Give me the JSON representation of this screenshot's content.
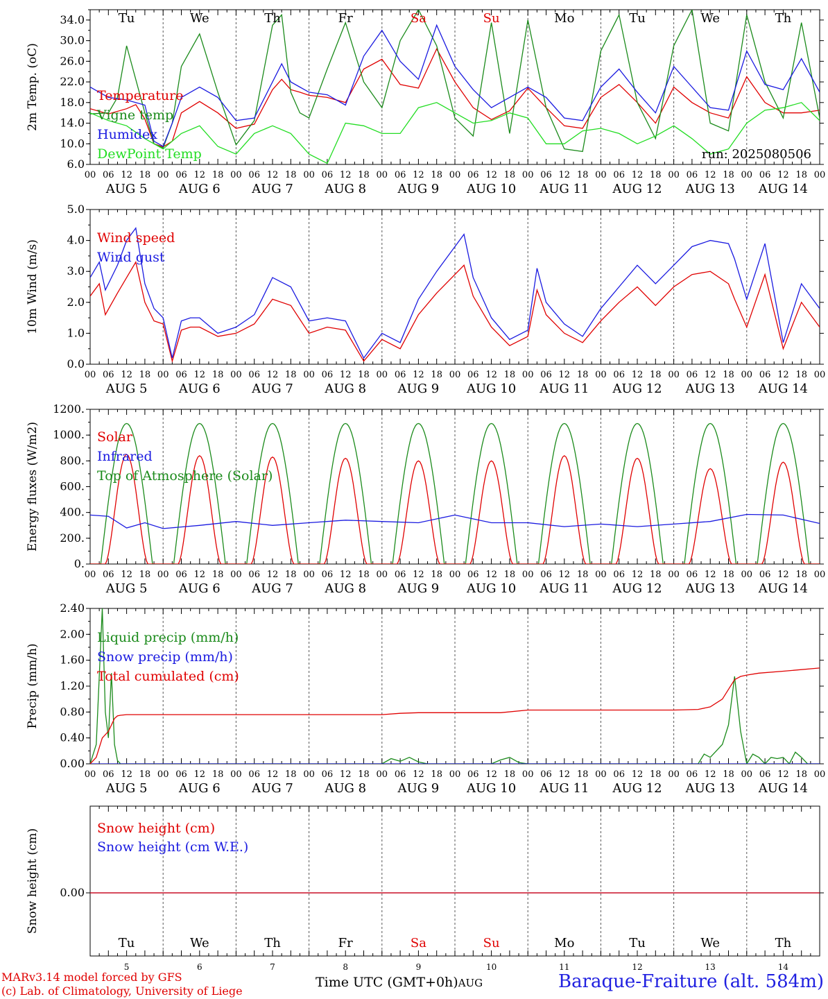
{
  "colors": {
    "red": "#e00000",
    "green": "#1a8a1a",
    "blue": "#1a1ae0",
    "lightgreen": "#22dd22",
    "axis": "#000000",
    "grid": "#555555"
  },
  "footer": {
    "credit_line1": "MARv3.14 model forced by GFS",
    "credit_line2": "(c) Lab. of Climatology, University of Liege",
    "time_label": "Time UTC (GMT+0h)",
    "aug_label": "AUG",
    "station": "Baraque-Fraiture (alt. 584m)"
  },
  "chart_data": [
    {
      "id": "temp",
      "type": "line",
      "ylabel": "2m Temp. (oC)",
      "ylim": [
        6,
        36
      ],
      "yticks": [
        "6.0",
        "10.0",
        "14.0",
        "18.0",
        "22.0",
        "26.0",
        "30.0",
        "34.0"
      ],
      "ytick_values": [
        6,
        10,
        14,
        18,
        22,
        26,
        30,
        34
      ],
      "days_top": [
        "Tu",
        "We",
        "Th",
        "Fr",
        "Sa",
        "Su",
        "Mo",
        "Tu",
        "We",
        "Th"
      ],
      "weekend_days": [
        4,
        5
      ],
      "run_label": "run: 2025080506",
      "date_labels": [
        "AUG 5",
        "AUG 6",
        "AUG 7",
        "AUG 8",
        "AUG 9",
        "AUG 10",
        "AUG 11",
        "AUG 12",
        "AUG 13",
        "AUG 14"
      ],
      "hour_labels": [
        "00",
        "06",
        "12",
        "18"
      ],
      "x_unit": "hours since AUG 5 00 UTC",
      "xlim": [
        0,
        240
      ],
      "series": [
        {
          "name": "Temperature",
          "color": "red",
          "x": [
            0,
            6,
            12,
            15,
            18,
            21,
            24,
            27,
            30,
            36,
            42,
            48,
            54,
            60,
            63,
            66,
            69,
            72,
            78,
            84,
            90,
            96,
            102,
            108,
            114,
            120,
            126,
            132,
            138,
            144,
            150,
            156,
            162,
            168,
            174,
            180,
            186,
            192,
            198,
            204,
            210,
            216,
            222,
            228,
            234,
            240
          ],
          "y": [
            16.8,
            15.8,
            16.8,
            17.6,
            14.8,
            10.0,
            9.4,
            10.5,
            16.0,
            18.2,
            16.0,
            13.0,
            13.8,
            20.5,
            22.5,
            20.5,
            20.0,
            19.4,
            19.0,
            18.0,
            24.5,
            26.4,
            21.5,
            20.8,
            28.4,
            22.0,
            17.0,
            14.7,
            16.4,
            20.8,
            17.0,
            13.5,
            13.0,
            19.0,
            21.5,
            18.0,
            14.0,
            21.0,
            18.0,
            16.0,
            15.0,
            23.0,
            18.0,
            16.0,
            16.0,
            16.5
          ]
        },
        {
          "name": "Vigne temp",
          "color": "green",
          "x": [
            0,
            6,
            9,
            12,
            18,
            21,
            24,
            27,
            30,
            36,
            42,
            48,
            54,
            60,
            63,
            66,
            69,
            72,
            78,
            84,
            90,
            96,
            102,
            108,
            114,
            120,
            126,
            132,
            138,
            144,
            150,
            156,
            162,
            168,
            174,
            180,
            186,
            192,
            198,
            204,
            210,
            216,
            222,
            228,
            234,
            240
          ],
          "y": [
            15.8,
            16.0,
            19.0,
            29.0,
            16.0,
            10.0,
            9.2,
            14.0,
            25.0,
            31.3,
            20.0,
            9.8,
            14.5,
            33.0,
            35.0,
            20.0,
            16.0,
            15.0,
            24.5,
            33.5,
            22.0,
            17.0,
            30.0,
            36.0,
            29.0,
            15.0,
            11.5,
            33.5,
            12.0,
            34.0,
            17.0,
            9.0,
            8.5,
            28.0,
            35.0,
            18.0,
            11.0,
            29.0,
            36.0,
            14.0,
            12.5,
            35.0,
            22.0,
            15.0,
            33.5,
            15.0
          ]
        },
        {
          "name": "Humidex",
          "color": "blue",
          "x": [
            0,
            6,
            12,
            18,
            21,
            24,
            27,
            30,
            36,
            42,
            48,
            54,
            60,
            63,
            66,
            69,
            72,
            78,
            84,
            90,
            96,
            102,
            108,
            114,
            120,
            126,
            132,
            138,
            144,
            150,
            156,
            162,
            168,
            174,
            180,
            186,
            192,
            198,
            204,
            210,
            216,
            222,
            228,
            234,
            240
          ],
          "y": [
            21.0,
            19.0,
            18.5,
            17.5,
            10.5,
            9.5,
            14.0,
            19.0,
            21.0,
            19.0,
            14.5,
            15.0,
            22.0,
            25.5,
            22.0,
            21.0,
            20.0,
            19.5,
            17.5,
            27.0,
            32.0,
            26.0,
            22.5,
            33.0,
            25.0,
            20.5,
            17.0,
            19.0,
            21.0,
            19.0,
            15.0,
            14.5,
            21.0,
            24.5,
            20.0,
            16.0,
            25.0,
            21.0,
            17.0,
            16.5,
            28.0,
            21.5,
            20.5,
            26.5,
            20.0
          ]
        },
        {
          "name": "DewPoint Temp",
          "color": "lightgreen",
          "x": [
            0,
            6,
            12,
            18,
            24,
            30,
            36,
            42,
            48,
            54,
            60,
            66,
            72,
            78,
            84,
            90,
            96,
            102,
            108,
            114,
            120,
            126,
            132,
            138,
            144,
            150,
            156,
            162,
            168,
            174,
            180,
            186,
            192,
            198,
            204,
            210,
            216,
            222,
            228,
            234,
            240
          ],
          "y": [
            16.0,
            14.5,
            13.5,
            11.0,
            9.0,
            12.0,
            13.5,
            9.5,
            8.0,
            12.0,
            13.5,
            12.0,
            8.0,
            6.2,
            14.0,
            13.5,
            12.0,
            12.0,
            17.0,
            18.0,
            16.0,
            14.0,
            14.5,
            16.0,
            15.0,
            10.0,
            10.0,
            12.5,
            13.0,
            12.0,
            10.0,
            11.5,
            13.5,
            11.0,
            8.0,
            9.0,
            14.0,
            16.5,
            17.0,
            18.0,
            14.5
          ]
        }
      ]
    },
    {
      "id": "wind",
      "type": "line",
      "ylabel": "10m Wind (m/s)",
      "ylim": [
        0,
        5
      ],
      "yticks": [
        "0.0",
        "1.0",
        "2.0",
        "3.0",
        "4.0",
        "5.0"
      ],
      "ytick_values": [
        0,
        1,
        2,
        3,
        4,
        5
      ],
      "date_labels": [
        "AUG 5",
        "AUG 6",
        "AUG 7",
        "AUG 8",
        "AUG 9",
        "AUG 10",
        "AUG 11",
        "AUG 12",
        "AUG 13",
        "AUG 14"
      ],
      "hour_labels": [
        "00",
        "06",
        "12",
        "18"
      ],
      "x_unit": "hours since AUG 5 00 UTC",
      "xlim": [
        0,
        240
      ],
      "series": [
        {
          "name": "Wind speed",
          "color": "red",
          "x": [
            0,
            3,
            5,
            9,
            12,
            15,
            18,
            21,
            24,
            27,
            30,
            33,
            36,
            42,
            48,
            54,
            60,
            66,
            72,
            78,
            84,
            90,
            96,
            102,
            108,
            114,
            120,
            123,
            126,
            132,
            138,
            144,
            147,
            150,
            156,
            162,
            168,
            174,
            180,
            186,
            192,
            198,
            204,
            210,
            212,
            216,
            222,
            228,
            234,
            240
          ],
          "y": [
            2.2,
            2.6,
            1.6,
            2.3,
            2.8,
            3.3,
            2.0,
            1.4,
            1.3,
            0.1,
            1.1,
            1.2,
            1.2,
            0.9,
            1.0,
            1.3,
            2.1,
            1.9,
            1.0,
            1.2,
            1.1,
            0.1,
            0.8,
            0.5,
            1.6,
            2.3,
            2.9,
            3.2,
            2.2,
            1.2,
            0.6,
            0.9,
            2.4,
            1.6,
            1.0,
            0.7,
            1.4,
            2.0,
            2.5,
            1.9,
            2.5,
            2.9,
            3.0,
            2.6,
            2.1,
            1.2,
            2.9,
            0.5,
            2.0,
            1.2
          ]
        },
        {
          "name": "Wind gust",
          "color": "blue",
          "x": [
            0,
            3,
            5,
            9,
            12,
            15,
            18,
            21,
            24,
            27,
            30,
            33,
            36,
            42,
            48,
            54,
            60,
            66,
            72,
            78,
            84,
            90,
            96,
            102,
            108,
            114,
            120,
            123,
            126,
            132,
            138,
            144,
            147,
            150,
            156,
            162,
            168,
            174,
            180,
            186,
            192,
            198,
            204,
            210,
            212,
            216,
            222,
            228,
            234,
            240
          ],
          "y": [
            2.8,
            3.3,
            2.4,
            3.2,
            4.0,
            4.4,
            2.6,
            1.8,
            1.5,
            0.2,
            1.4,
            1.5,
            1.5,
            1.0,
            1.2,
            1.6,
            2.8,
            2.5,
            1.4,
            1.5,
            1.4,
            0.2,
            1.0,
            0.7,
            2.1,
            3.0,
            3.8,
            4.2,
            2.8,
            1.5,
            0.8,
            1.1,
            3.1,
            2.0,
            1.3,
            0.9,
            1.8,
            2.5,
            3.2,
            2.6,
            3.2,
            3.8,
            4.0,
            3.9,
            3.4,
            2.1,
            3.9,
            0.7,
            2.6,
            1.8
          ]
        }
      ]
    },
    {
      "id": "energy",
      "type": "line",
      "ylabel": "Energy fluxes (W/m2)",
      "ylim": [
        0,
        1200
      ],
      "yticks": [
        "0.",
        "200.",
        "400.",
        "600.",
        "800.",
        "1000.",
        "1200."
      ],
      "ytick_values": [
        0,
        200,
        400,
        600,
        800,
        1000,
        1200
      ],
      "date_labels": [
        "AUG 5",
        "AUG 6",
        "AUG 7",
        "AUG 8",
        "AUG 9",
        "AUG 10",
        "AUG 11",
        "AUG 12",
        "AUG 13",
        "AUG 14"
      ],
      "hour_labels": [
        "00",
        "06",
        "12",
        "18"
      ],
      "x_unit": "hours since AUG 5 00 UTC",
      "xlim": [
        0,
        240
      ],
      "daily_toa_peak": 1090,
      "daily_solar_peak": [
        850,
        840,
        830,
        820,
        800,
        800,
        840,
        820,
        740,
        790
      ],
      "series": [
        {
          "name": "Solar",
          "color": "red"
        },
        {
          "name": "Infrared",
          "color": "blue",
          "x": [
            0,
            6,
            12,
            18,
            24,
            36,
            48,
            60,
            72,
            84,
            96,
            108,
            120,
            132,
            144,
            156,
            168,
            180,
            192,
            204,
            216,
            228,
            240
          ],
          "y": [
            380,
            370,
            280,
            320,
            275,
            300,
            330,
            300,
            320,
            340,
            330,
            320,
            380,
            320,
            320,
            290,
            310,
            290,
            310,
            330,
            385,
            380,
            315
          ]
        },
        {
          "name": "Top of Atmosphere (Solar)",
          "color": "green"
        }
      ]
    },
    {
      "id": "precip",
      "type": "line",
      "ylabel": "Precip (mm/h)",
      "ylim": [
        0,
        2.4
      ],
      "yticks": [
        "0.00",
        "0.40",
        "0.80",
        "1.20",
        "1.60",
        "2.00",
        "2.40"
      ],
      "ytick_values": [
        0,
        0.4,
        0.8,
        1.2,
        1.6,
        2.0,
        2.4
      ],
      "date_labels": [
        "AUG 5",
        "AUG 6",
        "AUG 7",
        "AUG 8",
        "AUG 9",
        "AUG 10",
        "AUG 11",
        "AUG 12",
        "AUG 13",
        "AUG 14"
      ],
      "hour_labels": [
        "00",
        "06",
        "12",
        "18"
      ],
      "x_unit": "hours since AUG 5 00 UTC",
      "xlim": [
        0,
        240
      ],
      "series": [
        {
          "name": "Liquid precip (mm/h)",
          "color": "green",
          "x": [
            0,
            2,
            4,
            5,
            6,
            7,
            8,
            9,
            10,
            12,
            14,
            24,
            96,
            99,
            102,
            105,
            108,
            111,
            114,
            132,
            135,
            138,
            141,
            144,
            200,
            202,
            204,
            206,
            208,
            210,
            212,
            214,
            216,
            218,
            220,
            222,
            224,
            226,
            228,
            230,
            232,
            234,
            236,
            240
          ],
          "y": [
            0,
            0.3,
            2.4,
            0.8,
            0.4,
            1.4,
            0.3,
            0.05,
            0,
            0,
            0,
            0,
            0,
            0.08,
            0.04,
            0.1,
            0.03,
            0,
            0,
            0,
            0.06,
            0.1,
            0.02,
            0,
            0,
            0.15,
            0.1,
            0.2,
            0.3,
            0.6,
            1.35,
            0.5,
            0,
            0.15,
            0.1,
            0,
            0.1,
            0.08,
            0.1,
            0,
            0.18,
            0.1,
            0,
            0
          ]
        },
        {
          "name": "Snow precip (mm/h)",
          "color": "blue",
          "x": [
            0,
            240
          ],
          "y": [
            0,
            0
          ]
        },
        {
          "name": "Total cumulated (cm)",
          "color": "red",
          "x": [
            0,
            2,
            4,
            6,
            7,
            8,
            9,
            10,
            12,
            24,
            96,
            102,
            108,
            120,
            135,
            144,
            168,
            192,
            200,
            204,
            208,
            212,
            214,
            216,
            220,
            228,
            240
          ],
          "y": [
            0,
            0.1,
            0.4,
            0.5,
            0.6,
            0.7,
            0.74,
            0.75,
            0.76,
            0.76,
            0.76,
            0.78,
            0.79,
            0.79,
            0.79,
            0.83,
            0.83,
            0.83,
            0.84,
            0.88,
            1.0,
            1.3,
            1.35,
            1.37,
            1.4,
            1.43,
            1.48
          ]
        }
      ]
    },
    {
      "id": "snow",
      "type": "line",
      "ylabel": "Snow height (cm)",
      "yticks": [
        "0.00"
      ],
      "ytick_values": [
        0
      ],
      "days_bottom": [
        "Tu",
        "We",
        "Th",
        "Fr",
        "Sa",
        "Su",
        "Mo",
        "Tu",
        "We",
        "Th"
      ],
      "weekend_days": [
        4,
        5
      ],
      "day_numbers": [
        "5",
        "6",
        "7",
        "8",
        "9",
        "10",
        "11",
        "12",
        "13",
        "14"
      ],
      "x_unit": "hours since AUG 5 00 UTC",
      "xlim": [
        0,
        240
      ],
      "series": [
        {
          "name": "Snow height (cm)",
          "color": "red",
          "x": [
            0,
            240
          ],
          "y": [
            0,
            0
          ]
        },
        {
          "name": "Snow height (cm W.E.)",
          "color": "blue",
          "x": [
            0,
            240
          ],
          "y": [
            0,
            0
          ]
        }
      ]
    }
  ]
}
